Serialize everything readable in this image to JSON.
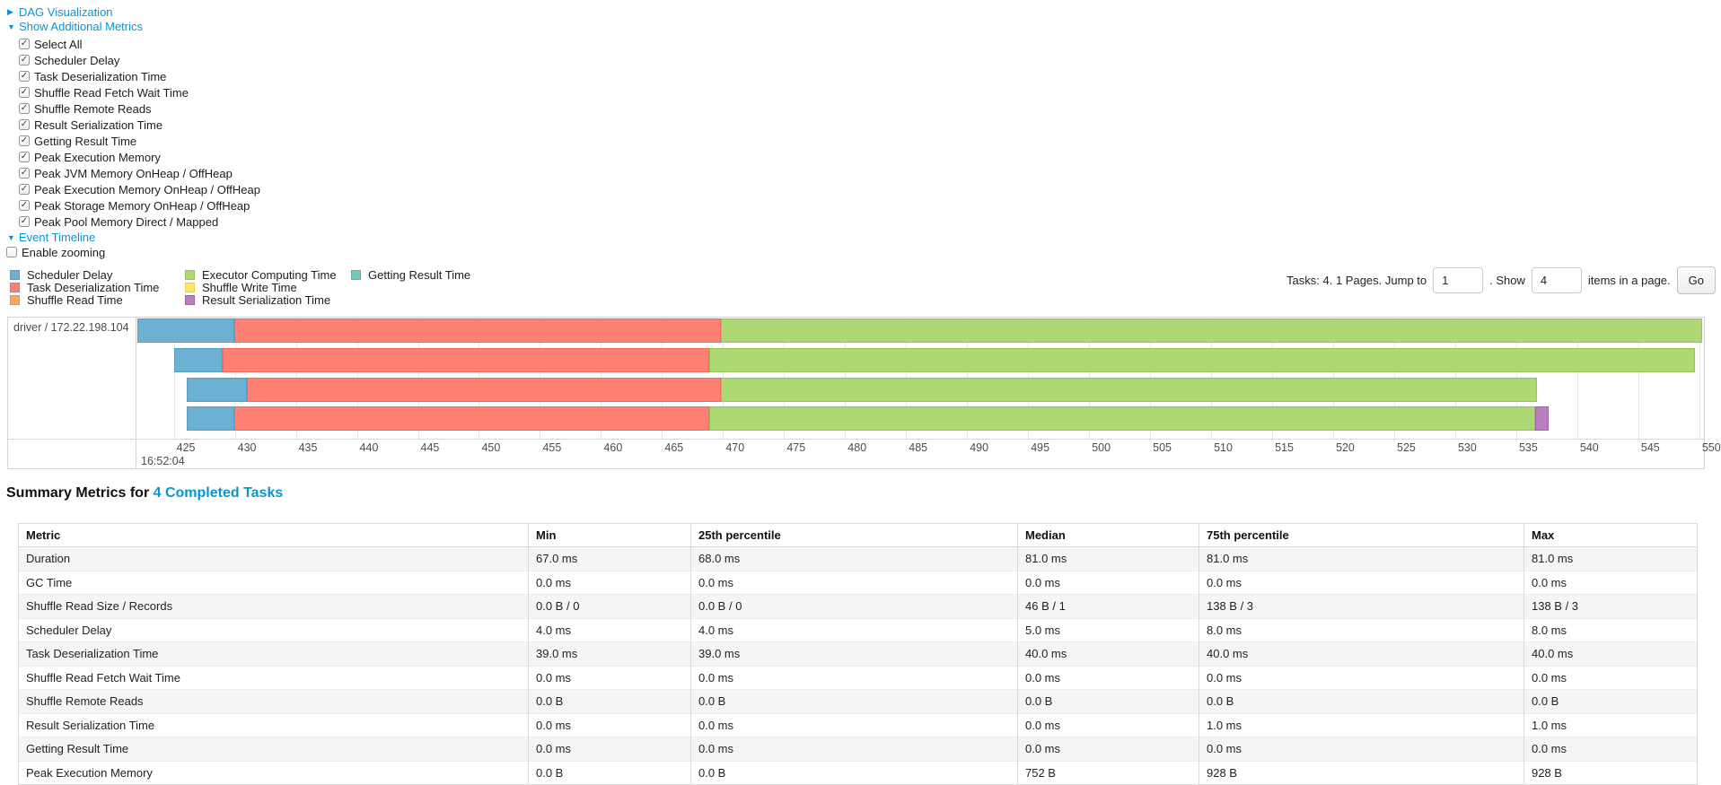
{
  "panels": {
    "dag": {
      "label": "DAG Visualization"
    },
    "metrics": {
      "label": "Show Additional Metrics"
    },
    "event_timeline": {
      "label": "Event Timeline"
    }
  },
  "metric_checkboxes": [
    {
      "label": "Select All",
      "checked": true
    },
    {
      "label": "Scheduler Delay",
      "checked": true
    },
    {
      "label": "Task Deserialization Time",
      "checked": true
    },
    {
      "label": "Shuffle Read Fetch Wait Time",
      "checked": true
    },
    {
      "label": "Shuffle Remote Reads",
      "checked": true
    },
    {
      "label": "Result Serialization Time",
      "checked": true
    },
    {
      "label": "Getting Result Time",
      "checked": true
    },
    {
      "label": "Peak Execution Memory",
      "checked": true
    },
    {
      "label": "Peak JVM Memory OnHeap / OffHeap",
      "checked": true
    },
    {
      "label": "Peak Execution Memory OnHeap / OffHeap",
      "checked": true
    },
    {
      "label": "Peak Storage Memory OnHeap / OffHeap",
      "checked": true
    },
    {
      "label": "Peak Pool Memory Direct / Mapped",
      "checked": true
    }
  ],
  "enable_zooming": {
    "label": "Enable zooming",
    "checked": false
  },
  "legend": {
    "columns": [
      [
        {
          "key": "scheduler_delay",
          "label": "Scheduler Delay"
        },
        {
          "key": "task_deserialization",
          "label": "Task Deserialization Time"
        },
        {
          "key": "shuffle_read",
          "label": "Shuffle Read Time"
        }
      ],
      [
        {
          "key": "executor_computing",
          "label": "Executor Computing Time"
        },
        {
          "key": "shuffle_write",
          "label": "Shuffle Write Time"
        },
        {
          "key": "result_serialization",
          "label": "Result Serialization Time"
        }
      ],
      [
        {
          "key": "getting_result",
          "label": "Getting Result Time"
        }
      ]
    ]
  },
  "colors": {
    "scheduler_delay": "#6CB0D4",
    "task_deserialization": "#FF8175",
    "shuffle_read": "#FCA85A",
    "executor_computing": "#ADD873",
    "shuffle_write": "#FBE767",
    "result_serialization": "#BA7FBE",
    "getting_result": "#6FCAB7"
  },
  "border_colors": {
    "scheduler_delay": "#579DC4",
    "task_deserialization": "#F26A5E",
    "shuffle_read": "#F08F3C",
    "executor_computing": "#94C556",
    "shuffle_write": "#E8D34A",
    "result_serialization": "#A360A8",
    "getting_result": "#54B7A2"
  },
  "pagination": {
    "tasks_text": "Tasks: 4. 1 Pages. Jump to",
    "jump_value": "1",
    "show_text": ". Show",
    "show_value": "4",
    "items_text": "items in a page.",
    "go_label": "Go"
  },
  "chart_data": {
    "type": "timeline",
    "group_label": "driver / 172.22.198.104",
    "axis": {
      "major_label": "16:52:04",
      "tick_labels": [
        "425",
        "430",
        "435",
        "440",
        "445",
        "450",
        "455",
        "460",
        "465",
        "470",
        "475",
        "480",
        "485",
        "490",
        "495",
        "500",
        "505",
        "510",
        "515",
        "520",
        "525",
        "530",
        "535",
        "540",
        "545",
        "550"
      ],
      "first_tick_pct": 2.33,
      "tick_step_pct": 3.895
    },
    "rows": [
      {
        "segments": [
          {
            "key": "scheduler_delay",
            "start_pct": 0.0,
            "end_pct": 6.19
          },
          {
            "key": "task_deserialization",
            "start_pct": 6.19,
            "end_pct": 37.23
          },
          {
            "key": "executor_computing",
            "start_pct": 37.23,
            "end_pct": 99.89
          }
        ]
      },
      {
        "segments": [
          {
            "key": "scheduler_delay",
            "start_pct": 2.35,
            "end_pct": 5.44
          },
          {
            "key": "task_deserialization",
            "start_pct": 5.44,
            "end_pct": 36.48
          },
          {
            "key": "executor_computing",
            "start_pct": 36.48,
            "end_pct": 99.43
          }
        ]
      },
      {
        "segments": [
          {
            "key": "scheduler_delay",
            "start_pct": 3.15,
            "end_pct": 6.99
          },
          {
            "key": "task_deserialization",
            "start_pct": 6.99,
            "end_pct": 37.23
          },
          {
            "key": "executor_computing",
            "start_pct": 37.23,
            "end_pct": 89.35
          }
        ]
      },
      {
        "segments": [
          {
            "key": "scheduler_delay",
            "start_pct": 3.15,
            "end_pct": 6.19
          },
          {
            "key": "task_deserialization",
            "start_pct": 6.19,
            "end_pct": 36.48
          },
          {
            "key": "executor_computing",
            "start_pct": 36.48,
            "end_pct": 89.23
          },
          {
            "key": "result_serialization",
            "start_pct": 89.23,
            "end_pct": 90.09
          }
        ]
      }
    ]
  },
  "summary": {
    "title_prefix": "Summary Metrics for ",
    "title_link": "4 Completed Tasks",
    "columns": [
      "Metric",
      "Min",
      "25th percentile",
      "Median",
      "75th percentile",
      "Max"
    ],
    "rows": [
      [
        "Duration",
        "67.0 ms",
        "68.0 ms",
        "81.0 ms",
        "81.0 ms",
        "81.0 ms"
      ],
      [
        "GC Time",
        "0.0 ms",
        "0.0 ms",
        "0.0 ms",
        "0.0 ms",
        "0.0 ms"
      ],
      [
        "Shuffle Read Size / Records",
        "0.0 B / 0",
        "0.0 B / 0",
        "46 B / 1",
        "138 B / 3",
        "138 B / 3"
      ],
      [
        "Scheduler Delay",
        "4.0 ms",
        "4.0 ms",
        "5.0 ms",
        "8.0 ms",
        "8.0 ms"
      ],
      [
        "Task Deserialization Time",
        "39.0 ms",
        "39.0 ms",
        "40.0 ms",
        "40.0 ms",
        "40.0 ms"
      ],
      [
        "Shuffle Read Fetch Wait Time",
        "0.0 ms",
        "0.0 ms",
        "0.0 ms",
        "0.0 ms",
        "0.0 ms"
      ],
      [
        "Shuffle Remote Reads",
        "0.0 B",
        "0.0 B",
        "0.0 B",
        "0.0 B",
        "0.0 B"
      ],
      [
        "Result Serialization Time",
        "0.0 ms",
        "0.0 ms",
        "0.0 ms",
        "1.0 ms",
        "1.0 ms"
      ],
      [
        "Getting Result Time",
        "0.0 ms",
        "0.0 ms",
        "0.0 ms",
        "0.0 ms",
        "0.0 ms"
      ],
      [
        "Peak Execution Memory",
        "0.0 B",
        "0.0 B",
        "752 B",
        "928 B",
        "928 B"
      ]
    ]
  }
}
